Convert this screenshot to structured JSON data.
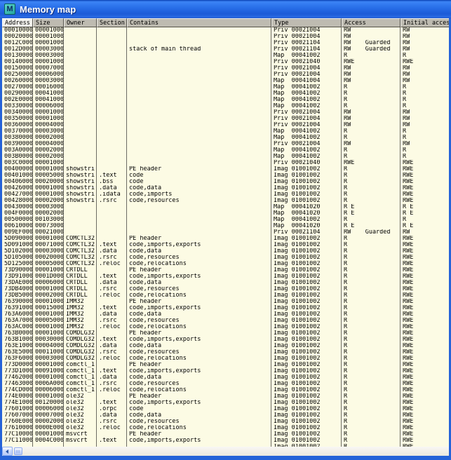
{
  "window": {
    "title": "Memory map",
    "icon_letter": "M"
  },
  "colors": {
    "titlebar_blue": "#2a71ea",
    "window_border_blue": "#2563d8",
    "table_background": "#fcfbe4",
    "header_grey": "#bebbb1",
    "selected_header": "#f2f1ec",
    "icon_teal": "#23a49d",
    "text": "#000000"
  },
  "columns": [
    {
      "key": "address",
      "label": "Address",
      "selected": true
    },
    {
      "key": "size",
      "label": "Size",
      "selected": false
    },
    {
      "key": "owner",
      "label": "Owner",
      "selected": false
    },
    {
      "key": "section",
      "label": "Section",
      "selected": false
    },
    {
      "key": "contains",
      "label": "Contains",
      "selected": false
    },
    {
      "key": "type",
      "label": "Type",
      "selected": false
    },
    {
      "key": "access",
      "label": "Access",
      "selected": false
    },
    {
      "key": "initial_access",
      "label": "Initial access",
      "selected": false
    }
  ],
  "rows": [
    [
      "00010000",
      "00001000",
      "",
      "",
      "",
      "Priv 00021004",
      "RW",
      "RW"
    ],
    [
      "00020000",
      "00001000",
      "",
      "",
      "",
      "Priv 00021004",
      "RW",
      "RW"
    ],
    [
      "0012C000",
      "00001000",
      "",
      "",
      "",
      "Priv 00021104",
      "RW    Guarded",
      "RW"
    ],
    [
      "0012D000",
      "00003000",
      "",
      "",
      "stack of main thread",
      "Priv 00021104",
      "RW    Guarded",
      "RW"
    ],
    [
      "00130000",
      "00003000",
      "",
      "",
      "",
      "Map  00041002",
      "R",
      "R"
    ],
    [
      "00140000",
      "00001000",
      "",
      "",
      "",
      "Priv 00021040",
      "RWE",
      "RWE"
    ],
    [
      "00150000",
      "00007000",
      "",
      "",
      "",
      "Priv 00021004",
      "RW",
      "RW"
    ],
    [
      "00250000",
      "00006000",
      "",
      "",
      "",
      "Priv 00021004",
      "RW",
      "RW"
    ],
    [
      "00260000",
      "00003000",
      "",
      "",
      "",
      "Map  00041004",
      "RW",
      "RW"
    ],
    [
      "00270000",
      "00016000",
      "",
      "",
      "",
      "Map  00041002",
      "R",
      "R"
    ],
    [
      "00290000",
      "00041000",
      "",
      "",
      "",
      "Map  00041002",
      "R",
      "R"
    ],
    [
      "002E0000",
      "00041000",
      "",
      "",
      "",
      "Map  00041002",
      "R",
      "R"
    ],
    [
      "00330000",
      "00006000",
      "",
      "",
      "",
      "Map  00041002",
      "R",
      "R"
    ],
    [
      "00340000",
      "00001000",
      "",
      "",
      "",
      "Priv 00021004",
      "RW",
      "RW"
    ],
    [
      "00350000",
      "00001000",
      "",
      "",
      "",
      "Priv 00021004",
      "RW",
      "RW"
    ],
    [
      "00360000",
      "00004000",
      "",
      "",
      "",
      "Priv 00021004",
      "RW",
      "RW"
    ],
    [
      "00370000",
      "00003000",
      "",
      "",
      "",
      "Map  00041002",
      "R",
      "R"
    ],
    [
      "00380000",
      "00002000",
      "",
      "",
      "",
      "Map  00041002",
      "R",
      "R"
    ],
    [
      "00390000",
      "00004000",
      "",
      "",
      "",
      "Priv 00021004",
      "RW",
      "RW"
    ],
    [
      "003A0000",
      "00002000",
      "",
      "",
      "",
      "Map  00041002",
      "R",
      "R"
    ],
    [
      "003B0000",
      "00002000",
      "",
      "",
      "",
      "Map  00041002",
      "R",
      "R"
    ],
    [
      "003C0000",
      "00001000",
      "",
      "",
      "",
      "Priv 00021040",
      "RWE",
      "RWE"
    ],
    [
      "00400000",
      "00001000",
      "showstri",
      "",
      "PE header",
      "Imag 01001002",
      "R",
      "RWE"
    ],
    [
      "00401000",
      "00005000",
      "showstri",
      ".text",
      "code",
      "Imag 01001002",
      "R",
      "RWE"
    ],
    [
      "00406000",
      "00020000",
      "showstri",
      ".bss",
      "code",
      "Imag 01001002",
      "R",
      "RWE"
    ],
    [
      "00426000",
      "00001000",
      "showstri",
      ".data",
      "code,data",
      "Imag 01001002",
      "R",
      "RWE"
    ],
    [
      "00427000",
      "00001000",
      "showstri",
      ".idata",
      "code,imports",
      "Imag 01001002",
      "R",
      "RWE"
    ],
    [
      "00428000",
      "00002000",
      "showstri",
      ".rsrc",
      "code,resources",
      "Imag 01001002",
      "R",
      "RWE"
    ],
    [
      "00430000",
      "00003000",
      "",
      "",
      "",
      "Map  00041020",
      "R E",
      "R E"
    ],
    [
      "004F0000",
      "00002000",
      "",
      "",
      "",
      "Map  00041020",
      "R E",
      "R E"
    ],
    [
      "00500000",
      "00103000",
      "",
      "",
      "",
      "Map  00041002",
      "R",
      "R"
    ],
    [
      "00610000",
      "00073000",
      "",
      "",
      "",
      "Map  00041020",
      "R E",
      "R E"
    ],
    [
      "009EF000",
      "00021000",
      "",
      "",
      "",
      "Priv 00021104",
      "RW    Guarded",
      "RW"
    ],
    [
      "5D090000",
      "00001000",
      "COMCTL32",
      "",
      "PE header",
      "Imag 01001002",
      "R",
      "RWE"
    ],
    [
      "5D091000",
      "00071000",
      "COMCTL32",
      ".text",
      "code,imports,exports",
      "Imag 01001002",
      "R",
      "RWE"
    ],
    [
      "5D102000",
      "00003000",
      "COMCTL32",
      ".data",
      "code,data",
      "Imag 01001002",
      "R",
      "RWE"
    ],
    [
      "5D105000",
      "00020000",
      "COMCTL32",
      ".rsrc",
      "code,resources",
      "Imag 01001002",
      "R",
      "RWE"
    ],
    [
      "5D125000",
      "00005000",
      "COMCTL32",
      ".reloc",
      "code,relocations",
      "Imag 01001002",
      "R",
      "RWE"
    ],
    [
      "73D90000",
      "00001000",
      "CRTDLL",
      "",
      "PE header",
      "Imag 01001002",
      "R",
      "RWE"
    ],
    [
      "73D91000",
      "0001D000",
      "CRTDLL",
      ".text",
      "code,imports,exports",
      "Imag 01001002",
      "R",
      "RWE"
    ],
    [
      "73DAE000",
      "00006000",
      "CRTDLL",
      ".data",
      "code,data",
      "Imag 01001002",
      "R",
      "RWE"
    ],
    [
      "73DB4000",
      "00001000",
      "CRTDLL",
      ".rsrc",
      "code,resources",
      "Imag 01001002",
      "R",
      "RWE"
    ],
    [
      "73DB5000",
      "00002000",
      "CRTDLL",
      ".reloc",
      "code,relocations",
      "Imag 01001002",
      "R",
      "RWE"
    ],
    [
      "76390000",
      "00001000",
      "IMM32",
      "",
      "PE header",
      "Imag 01001002",
      "R",
      "RWE"
    ],
    [
      "76391000",
      "00015000",
      "IMM32",
      ".text",
      "code,imports,exports",
      "Imag 01001002",
      "R",
      "RWE"
    ],
    [
      "763A6000",
      "00001000",
      "IMM32",
      ".data",
      "code,data",
      "Imag 01001002",
      "R",
      "RWE"
    ],
    [
      "763A7000",
      "00005000",
      "IMM32",
      ".rsrc",
      "code,resources",
      "Imag 01001002",
      "R",
      "RWE"
    ],
    [
      "763AC000",
      "00001000",
      "IMM32",
      ".reloc",
      "code,relocations",
      "Imag 01001002",
      "R",
      "RWE"
    ],
    [
      "763B0000",
      "00001000",
      "COMDLG32",
      "",
      "PE header",
      "Imag 01001002",
      "R",
      "RWE"
    ],
    [
      "763B1000",
      "00030000",
      "COMDLG32",
      ".text",
      "code,imports,exports",
      "Imag 01001002",
      "R",
      "RWE"
    ],
    [
      "763E1000",
      "00004000",
      "COMDLG32",
      ".data",
      "code,data",
      "Imag 01001002",
      "R",
      "RWE"
    ],
    [
      "763E5000",
      "00011000",
      "COMDLG32",
      ".rsrc",
      "code,resources",
      "Imag 01001002",
      "R",
      "RWE"
    ],
    [
      "763F6000",
      "00003000",
      "COMDLG32",
      ".reloc",
      "code,relocations",
      "Imag 01001002",
      "R",
      "RWE"
    ],
    [
      "773D0000",
      "00001000",
      "comctl_1",
      "",
      "PE header",
      "Imag 01001002",
      "R",
      "RWE"
    ],
    [
      "773D1000",
      "00091000",
      "comctl_1",
      ".text",
      "code,imports,exports",
      "Imag 01001002",
      "R",
      "RWE"
    ],
    [
      "77462000",
      "00001000",
      "comctl_1",
      ".data",
      "code,data",
      "Imag 01001002",
      "R",
      "RWE"
    ],
    [
      "77463000",
      "0006A000",
      "comctl_1",
      ".rsrc",
      "code,resources",
      "Imag 01001002",
      "R",
      "RWE"
    ],
    [
      "774CD000",
      "00006000",
      "comctl_1",
      ".reloc",
      "code,relocations",
      "Imag 01001002",
      "R",
      "RWE"
    ],
    [
      "774E0000",
      "00001000",
      "ole32",
      "",
      "PE header",
      "Imag 01001002",
      "R",
      "RWE"
    ],
    [
      "774E1000",
      "00120000",
      "ole32",
      ".text",
      "code,imports,exports",
      "Imag 01001002",
      "R",
      "RWE"
    ],
    [
      "77601000",
      "00006000",
      "ole32",
      ".orpc",
      "code",
      "Imag 01001002",
      "R",
      "RWE"
    ],
    [
      "77607000",
      "00007000",
      "ole32",
      ".data",
      "code,data",
      "Imag 01001002",
      "R",
      "RWE"
    ],
    [
      "7760E000",
      "00002000",
      "ole32",
      ".rsrc",
      "code,resources",
      "Imag 01001002",
      "R",
      "RWE"
    ],
    [
      "77610000",
      "0000E000",
      "ole32",
      ".reloc",
      "code,relocations",
      "Imag 01001002",
      "R",
      "RWE"
    ],
    [
      "77C10000",
      "00001000",
      "msvcrt",
      "",
      "PE header",
      "Imag 01001002",
      "R",
      "RWE"
    ],
    [
      "77C11000",
      "0004C000",
      "msvcrt",
      ".text",
      "code,imports,exports",
      "Imag 01001002",
      "R",
      "RWE"
    ]
  ],
  "partial_row": [
    "",
    "",
    "",
    "",
    "",
    "Imag 01001002",
    "R",
    "RWE"
  ],
  "scrollbar": {
    "orientation": "horizontal",
    "left_arrow_icon": "scroll-left-icon",
    "thumb": "scrollbar-thumb"
  }
}
